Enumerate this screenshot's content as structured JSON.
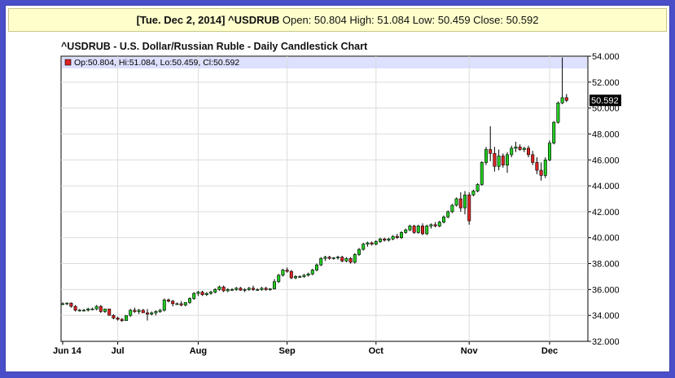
{
  "header": {
    "date_symbol": "[Tue. Dec 2, 2014] ^USDRUB",
    "open_label": "Open:",
    "open_value": "50.804",
    "high_label": "High:",
    "high_value": "51.084",
    "low_label": "Low:",
    "low_value": "50.459",
    "close_label": "Close:",
    "close_value": "50.592"
  },
  "legend": {
    "text": "Op:50.804, Hi:51.084, Lo:50.459, Cl:50.592"
  },
  "last_price_label": "50.592",
  "colors": {
    "up": "#22cc22",
    "down": "#dd2222",
    "grid": "#dcdcdc",
    "legend_band": "#dde0ff",
    "price_tag": "#000000"
  },
  "chart_data": {
    "type": "candlestick",
    "title": "^USDRUB - U.S. Dollar/Russian Ruble - Daily Candlestick Chart",
    "y_range": [
      32,
      54
    ],
    "y_ticks": [
      "32.000",
      "34.000",
      "36.000",
      "38.000",
      "40.000",
      "42.000",
      "44.000",
      "46.000",
      "48.000",
      "50.000",
      "52.000",
      "54.000"
    ],
    "x_ticks": [
      {
        "label": "Jun 14",
        "index": 0
      },
      {
        "label": "Jul",
        "index": 13
      },
      {
        "label": "Aug",
        "index": 32
      },
      {
        "label": "Sep",
        "index": 53
      },
      {
        "label": "Oct",
        "index": 74
      },
      {
        "label": "Nov",
        "index": 96
      },
      {
        "label": "Dec",
        "index": 115
      }
    ],
    "grid": true,
    "candles": [
      {
        "o": 34.9,
        "h": 35.0,
        "l": 34.8,
        "c": 34.9
      },
      {
        "o": 34.9,
        "h": 35.0,
        "l": 34.8,
        "c": 34.95
      },
      {
        "o": 34.95,
        "h": 35.0,
        "l": 34.6,
        "c": 34.7
      },
      {
        "o": 34.7,
        "h": 34.8,
        "l": 34.3,
        "c": 34.4
      },
      {
        "o": 34.4,
        "h": 34.5,
        "l": 34.3,
        "c": 34.4
      },
      {
        "o": 34.4,
        "h": 34.5,
        "l": 34.3,
        "c": 34.4
      },
      {
        "o": 34.4,
        "h": 34.6,
        "l": 34.3,
        "c": 34.5
      },
      {
        "o": 34.5,
        "h": 34.6,
        "l": 34.4,
        "c": 34.5
      },
      {
        "o": 34.5,
        "h": 34.8,
        "l": 34.4,
        "c": 34.7
      },
      {
        "o": 34.7,
        "h": 34.8,
        "l": 34.2,
        "c": 34.3
      },
      {
        "o": 34.3,
        "h": 34.5,
        "l": 34.2,
        "c": 34.5
      },
      {
        "o": 34.5,
        "h": 34.5,
        "l": 34.0,
        "c": 34.0
      },
      {
        "o": 34.0,
        "h": 34.1,
        "l": 33.7,
        "c": 33.8
      },
      {
        "o": 33.8,
        "h": 33.9,
        "l": 33.6,
        "c": 33.7
      },
      {
        "o": 33.7,
        "h": 33.8,
        "l": 33.5,
        "c": 33.6
      },
      {
        "o": 33.6,
        "h": 34.0,
        "l": 33.6,
        "c": 34.0
      },
      {
        "o": 34.0,
        "h": 34.5,
        "l": 33.9,
        "c": 34.4
      },
      {
        "o": 34.4,
        "h": 34.6,
        "l": 34.2,
        "c": 34.3
      },
      {
        "o": 34.3,
        "h": 34.5,
        "l": 34.1,
        "c": 34.4
      },
      {
        "o": 34.4,
        "h": 34.5,
        "l": 34.2,
        "c": 34.2
      },
      {
        "o": 34.2,
        "h": 34.5,
        "l": 33.6,
        "c": 34.1
      },
      {
        "o": 34.1,
        "h": 34.3,
        "l": 34.0,
        "c": 34.2
      },
      {
        "o": 34.2,
        "h": 34.4,
        "l": 34.0,
        "c": 34.3
      },
      {
        "o": 34.3,
        "h": 34.5,
        "l": 34.2,
        "c": 34.4
      },
      {
        "o": 34.4,
        "h": 35.3,
        "l": 34.3,
        "c": 35.2
      },
      {
        "o": 35.2,
        "h": 35.3,
        "l": 35.0,
        "c": 35.1
      },
      {
        "o": 35.1,
        "h": 35.2,
        "l": 34.7,
        "c": 34.9
      },
      {
        "o": 34.9,
        "h": 35.0,
        "l": 34.8,
        "c": 34.9
      },
      {
        "o": 34.9,
        "h": 35.1,
        "l": 34.7,
        "c": 34.8
      },
      {
        "o": 34.8,
        "h": 35.0,
        "l": 34.7,
        "c": 35.0
      },
      {
        "o": 35.0,
        "h": 35.4,
        "l": 34.9,
        "c": 35.3
      },
      {
        "o": 35.3,
        "h": 35.8,
        "l": 35.2,
        "c": 35.7
      },
      {
        "o": 35.7,
        "h": 35.9,
        "l": 35.5,
        "c": 35.8
      },
      {
        "o": 35.8,
        "h": 35.9,
        "l": 35.5,
        "c": 35.6
      },
      {
        "o": 35.6,
        "h": 35.8,
        "l": 35.5,
        "c": 35.7
      },
      {
        "o": 35.7,
        "h": 35.9,
        "l": 35.6,
        "c": 35.8
      },
      {
        "o": 35.8,
        "h": 36.1,
        "l": 35.7,
        "c": 36.0
      },
      {
        "o": 36.0,
        "h": 36.3,
        "l": 35.9,
        "c": 36.2
      },
      {
        "o": 36.2,
        "h": 36.3,
        "l": 35.8,
        "c": 35.9
      },
      {
        "o": 35.9,
        "h": 36.1,
        "l": 35.8,
        "c": 36.0
      },
      {
        "o": 36.0,
        "h": 36.1,
        "l": 35.9,
        "c": 36.0
      },
      {
        "o": 36.0,
        "h": 36.2,
        "l": 35.9,
        "c": 36.1
      },
      {
        "o": 36.1,
        "h": 36.2,
        "l": 35.9,
        "c": 35.95
      },
      {
        "o": 35.95,
        "h": 36.1,
        "l": 35.8,
        "c": 36.0
      },
      {
        "o": 36.0,
        "h": 36.2,
        "l": 35.9,
        "c": 36.1
      },
      {
        "o": 36.1,
        "h": 36.3,
        "l": 35.9,
        "c": 36.0
      },
      {
        "o": 36.0,
        "h": 36.1,
        "l": 35.9,
        "c": 36.0
      },
      {
        "o": 36.0,
        "h": 36.2,
        "l": 35.9,
        "c": 36.1
      },
      {
        "o": 36.1,
        "h": 36.2,
        "l": 35.9,
        "c": 36.0
      },
      {
        "o": 36.0,
        "h": 36.1,
        "l": 35.9,
        "c": 36.05
      },
      {
        "o": 36.05,
        "h": 36.8,
        "l": 36.0,
        "c": 36.6
      },
      {
        "o": 36.6,
        "h": 37.2,
        "l": 36.5,
        "c": 37.1
      },
      {
        "o": 37.1,
        "h": 37.6,
        "l": 37.0,
        "c": 37.5
      },
      {
        "o": 37.5,
        "h": 37.7,
        "l": 37.3,
        "c": 37.4
      },
      {
        "o": 37.4,
        "h": 37.5,
        "l": 36.8,
        "c": 36.9
      },
      {
        "o": 36.9,
        "h": 37.1,
        "l": 36.8,
        "c": 37.0
      },
      {
        "o": 37.0,
        "h": 37.1,
        "l": 36.9,
        "c": 37.0
      },
      {
        "o": 37.0,
        "h": 37.2,
        "l": 36.9,
        "c": 37.1
      },
      {
        "o": 37.1,
        "h": 37.3,
        "l": 37.0,
        "c": 37.2
      },
      {
        "o": 37.2,
        "h": 37.6,
        "l": 37.1,
        "c": 37.5
      },
      {
        "o": 37.5,
        "h": 38.0,
        "l": 37.4,
        "c": 37.9
      },
      {
        "o": 37.9,
        "h": 38.5,
        "l": 37.8,
        "c": 38.4
      },
      {
        "o": 38.4,
        "h": 38.6,
        "l": 38.2,
        "c": 38.5
      },
      {
        "o": 38.5,
        "h": 38.6,
        "l": 38.3,
        "c": 38.4
      },
      {
        "o": 38.4,
        "h": 38.5,
        "l": 38.3,
        "c": 38.45
      },
      {
        "o": 38.45,
        "h": 38.6,
        "l": 38.3,
        "c": 38.5
      },
      {
        "o": 38.5,
        "h": 38.6,
        "l": 38.1,
        "c": 38.2
      },
      {
        "o": 38.2,
        "h": 38.5,
        "l": 38.1,
        "c": 38.4
      },
      {
        "o": 38.4,
        "h": 38.5,
        "l": 38.0,
        "c": 38.1
      },
      {
        "o": 38.1,
        "h": 38.8,
        "l": 38.0,
        "c": 38.7
      },
      {
        "o": 38.7,
        "h": 39.2,
        "l": 38.6,
        "c": 39.1
      },
      {
        "o": 39.1,
        "h": 39.6,
        "l": 39.0,
        "c": 39.5
      },
      {
        "o": 39.5,
        "h": 39.7,
        "l": 39.3,
        "c": 39.6
      },
      {
        "o": 39.6,
        "h": 39.7,
        "l": 39.4,
        "c": 39.5
      },
      {
        "o": 39.5,
        "h": 39.8,
        "l": 39.4,
        "c": 39.7
      },
      {
        "o": 39.7,
        "h": 40.0,
        "l": 39.6,
        "c": 39.9
      },
      {
        "o": 39.9,
        "h": 40.0,
        "l": 39.7,
        "c": 39.8
      },
      {
        "o": 39.8,
        "h": 40.0,
        "l": 39.7,
        "c": 39.9
      },
      {
        "o": 39.9,
        "h": 40.2,
        "l": 39.8,
        "c": 40.1
      },
      {
        "o": 40.1,
        "h": 40.3,
        "l": 39.9,
        "c": 40.0
      },
      {
        "o": 40.0,
        "h": 40.5,
        "l": 39.9,
        "c": 40.4
      },
      {
        "o": 40.4,
        "h": 40.7,
        "l": 40.3,
        "c": 40.6
      },
      {
        "o": 40.6,
        "h": 41.0,
        "l": 40.5,
        "c": 40.9
      },
      {
        "o": 40.9,
        "h": 41.0,
        "l": 40.3,
        "c": 40.4
      },
      {
        "o": 40.4,
        "h": 41.0,
        "l": 40.3,
        "c": 40.9
      },
      {
        "o": 40.9,
        "h": 41.1,
        "l": 40.2,
        "c": 40.3
      },
      {
        "o": 40.3,
        "h": 41.0,
        "l": 40.2,
        "c": 40.9
      },
      {
        "o": 40.9,
        "h": 41.1,
        "l": 40.7,
        "c": 41.0
      },
      {
        "o": 41.0,
        "h": 41.2,
        "l": 40.8,
        "c": 40.9
      },
      {
        "o": 40.9,
        "h": 41.3,
        "l": 40.8,
        "c": 41.2
      },
      {
        "o": 41.2,
        "h": 41.7,
        "l": 41.1,
        "c": 41.6
      },
      {
        "o": 41.6,
        "h": 42.1,
        "l": 41.5,
        "c": 42.0
      },
      {
        "o": 42.0,
        "h": 42.6,
        "l": 41.9,
        "c": 42.5
      },
      {
        "o": 42.5,
        "h": 43.1,
        "l": 42.4,
        "c": 43.0
      },
      {
        "o": 43.0,
        "h": 43.5,
        "l": 42.0,
        "c": 42.3
      },
      {
        "o": 42.3,
        "h": 43.6,
        "l": 41.8,
        "c": 43.3
      },
      {
        "o": 43.3,
        "h": 43.5,
        "l": 41.0,
        "c": 41.3
      },
      {
        "o": 43.3,
        "h": 43.7,
        "l": 43.2,
        "c": 43.6
      },
      {
        "o": 43.6,
        "h": 44.2,
        "l": 43.5,
        "c": 44.1
      },
      {
        "o": 44.1,
        "h": 45.9,
        "l": 44.0,
        "c": 45.8
      },
      {
        "o": 45.8,
        "h": 47.0,
        "l": 45.6,
        "c": 46.8
      },
      {
        "o": 46.8,
        "h": 48.6,
        "l": 45.9,
        "c": 46.5
      },
      {
        "o": 46.5,
        "h": 47.0,
        "l": 45.1,
        "c": 45.5
      },
      {
        "o": 45.5,
        "h": 46.8,
        "l": 45.2,
        "c": 46.3
      },
      {
        "o": 46.3,
        "h": 46.5,
        "l": 45.4,
        "c": 45.6
      },
      {
        "o": 45.6,
        "h": 46.6,
        "l": 45.0,
        "c": 46.4
      },
      {
        "o": 46.4,
        "h": 47.1,
        "l": 46.2,
        "c": 46.9
      },
      {
        "o": 46.9,
        "h": 47.4,
        "l": 46.6,
        "c": 47.0
      },
      {
        "o": 47.0,
        "h": 47.2,
        "l": 46.7,
        "c": 46.8
      },
      {
        "o": 46.8,
        "h": 47.0,
        "l": 46.6,
        "c": 46.9
      },
      {
        "o": 46.9,
        "h": 47.1,
        "l": 46.2,
        "c": 46.4
      },
      {
        "o": 46.4,
        "h": 46.7,
        "l": 45.6,
        "c": 45.8
      },
      {
        "o": 45.8,
        "h": 46.2,
        "l": 44.9,
        "c": 45.2
      },
      {
        "o": 45.2,
        "h": 45.8,
        "l": 44.4,
        "c": 44.8
      },
      {
        "o": 44.8,
        "h": 46.2,
        "l": 44.6,
        "c": 46.0
      },
      {
        "o": 46.0,
        "h": 47.5,
        "l": 45.9,
        "c": 47.3
      },
      {
        "o": 47.3,
        "h": 49.0,
        "l": 47.2,
        "c": 48.9
      },
      {
        "o": 48.9,
        "h": 50.5,
        "l": 48.8,
        "c": 50.4
      },
      {
        "o": 50.4,
        "h": 53.9,
        "l": 50.3,
        "c": 50.8
      },
      {
        "o": 50.804,
        "h": 51.084,
        "l": 50.459,
        "c": 50.592
      }
    ]
  }
}
